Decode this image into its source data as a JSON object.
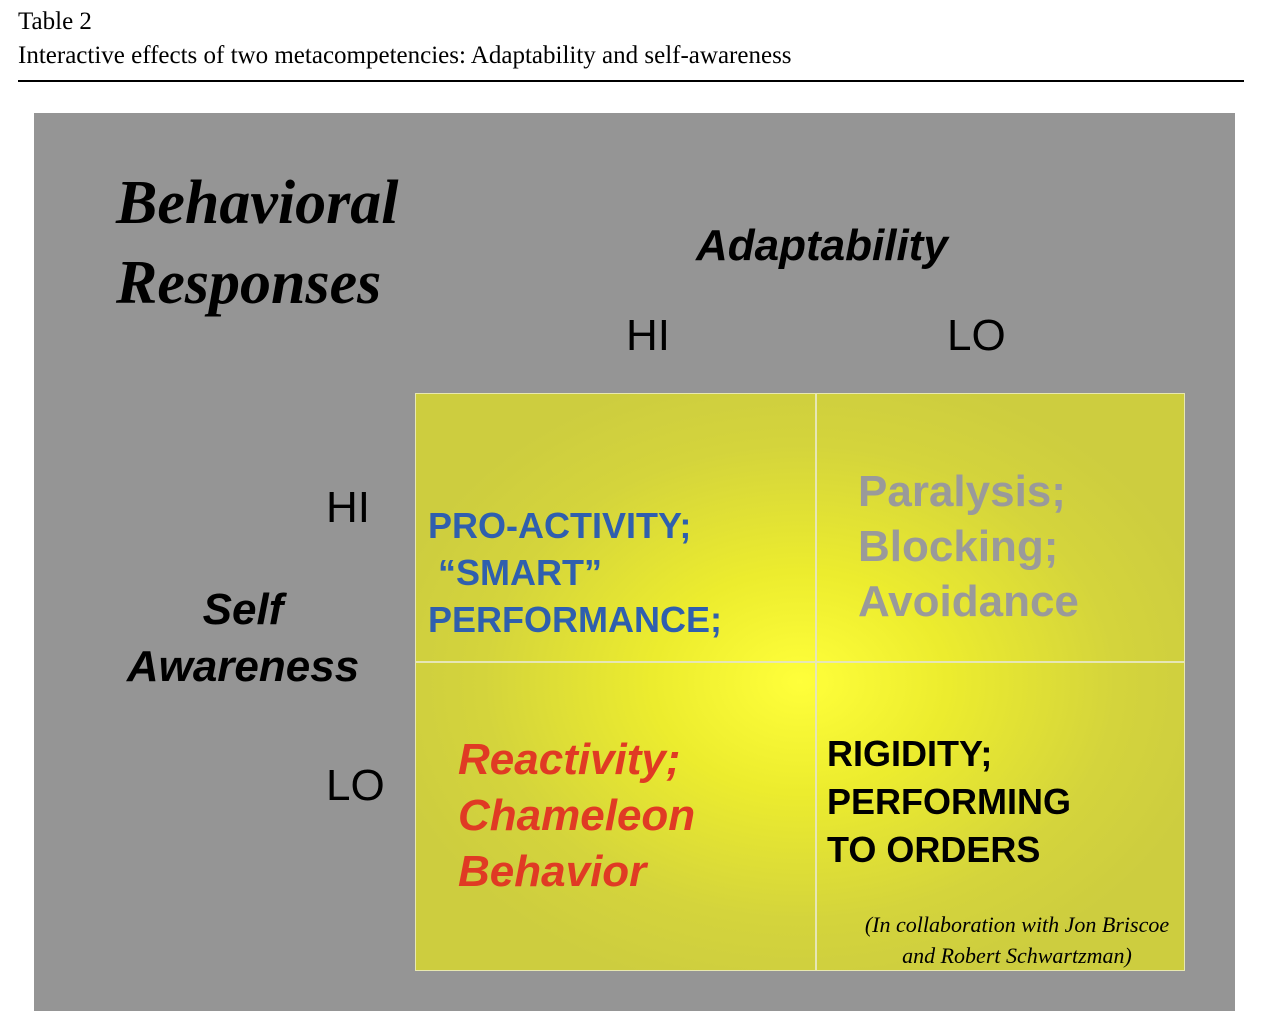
{
  "caption": {
    "label": "Table 2",
    "title": "Interactive effects of two metacompetencies: Adaptability and self-awareness"
  },
  "figure": {
    "title_lines": [
      "Behavioral",
      "Responses"
    ],
    "x_axis": {
      "title": "Adaptability",
      "levels": [
        "HI",
        "LO"
      ]
    },
    "y_axis": {
      "title_lines": [
        "Self",
        "Awareness"
      ],
      "levels": [
        "HI",
        "LO"
      ]
    },
    "cells": {
      "hi_hi": [
        "PRO-ACTIVITY;",
        " “SMART”",
        "PERFORMANCE;"
      ],
      "hi_lo": [
        "Paralysis;",
        "Blocking;",
        "Avoidance"
      ],
      "lo_hi": [
        "Reactivity;",
        "Chameleon",
        "Behavior"
      ],
      "lo_lo": [
        "RIGIDITY;",
        "PERFORMING",
        "TO ORDERS"
      ]
    },
    "credit_lines": [
      "(In collaboration with Jon Briscoe",
      "and Robert Schwartzman)"
    ],
    "colors": {
      "panel_background": "#959595",
      "grid_background": "#d4d43c",
      "grid_highlight": "#ffff3a",
      "hi_hi_text": "#2f5fae",
      "hi_lo_text": "#9a9a9a",
      "lo_hi_text": "#e03a24",
      "lo_lo_text": "#000000"
    }
  }
}
